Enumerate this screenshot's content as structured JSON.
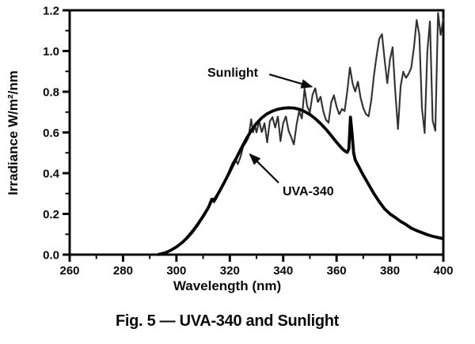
{
  "figure": {
    "caption": "Fig. 5 — UVA-340 and Sunlight"
  },
  "chart_data": {
    "type": "line",
    "title": "",
    "xlabel": "Wavelength (nm)",
    "ylabel": "Irradiance W/m²/nm",
    "xlim": [
      260,
      400
    ],
    "ylim": [
      0,
      1.2
    ],
    "x_ticks": [
      260,
      280,
      300,
      320,
      340,
      360,
      380,
      400
    ],
    "x_minor_step": 10,
    "y_ticks": [
      "0.0",
      "0.2",
      "0.4",
      "0.6",
      "0.8",
      "1.0",
      "1.2"
    ],
    "y_minor_step": 0.1,
    "grid": false,
    "legend_position": "inline-annotations-with-arrows",
    "frame": "full-box",
    "ink_color": "#0a0a0a",
    "series": [
      {
        "name": "Sunlight",
        "style": "stippled-noisy-thin",
        "color": "#2e2e2e",
        "points": [
          [
            294,
            0
          ],
          [
            296,
            0.008
          ],
          [
            298,
            0.02
          ],
          [
            300,
            0.037
          ],
          [
            302,
            0.06
          ],
          [
            304,
            0.088
          ],
          [
            306,
            0.12
          ],
          [
            308,
            0.155
          ],
          [
            310,
            0.195
          ],
          [
            311,
            0.215
          ],
          [
            312,
            0.235
          ],
          [
            313,
            0.275
          ],
          [
            314,
            0.255
          ],
          [
            315,
            0.275
          ],
          [
            316,
            0.305
          ],
          [
            317,
            0.33
          ],
          [
            318,
            0.36
          ],
          [
            319,
            0.385
          ],
          [
            320,
            0.42
          ],
          [
            321,
            0.45
          ],
          [
            322,
            0.47
          ],
          [
            323,
            0.445
          ],
          [
            324,
            0.48
          ],
          [
            325,
            0.53
          ],
          [
            326,
            0.55
          ],
          [
            327,
            0.575
          ],
          [
            328,
            0.665
          ],
          [
            328.7,
            0.6
          ],
          [
            329.4,
            0.635
          ],
          [
            330,
            0.6
          ],
          [
            331,
            0.655
          ],
          [
            332,
            0.6
          ],
          [
            333,
            0.645
          ],
          [
            334,
            0.552
          ],
          [
            335,
            0.655
          ],
          [
            336,
            0.675
          ],
          [
            337,
            0.625
          ],
          [
            338,
            0.68
          ],
          [
            339,
            0.558
          ],
          [
            340,
            0.645
          ],
          [
            341,
            0.68
          ],
          [
            342,
            0.608
          ],
          [
            343,
            0.578
          ],
          [
            344,
            0.54
          ],
          [
            345,
            0.638
          ],
          [
            346,
            0.705
          ],
          [
            347,
            0.668
          ],
          [
            348,
            0.815
          ],
          [
            349,
            0.728
          ],
          [
            350,
            0.7
          ],
          [
            351,
            0.785
          ],
          [
            352,
            0.818
          ],
          [
            353,
            0.748
          ],
          [
            354,
            0.775
          ],
          [
            355,
            0.705
          ],
          [
            356,
            0.662
          ],
          [
            357,
            0.648
          ],
          [
            358,
            0.748
          ],
          [
            359,
            0.782
          ],
          [
            360,
            0.728
          ],
          [
            361,
            0.688
          ],
          [
            362,
            0.715
          ],
          [
            363,
            0.705
          ],
          [
            364,
            0.8
          ],
          [
            365,
            0.92
          ],
          [
            366,
            0.84
          ],
          [
            367,
            0.8
          ],
          [
            368,
            0.85
          ],
          [
            369,
            0.77
          ],
          [
            370,
            0.72
          ],
          [
            371,
            0.69
          ],
          [
            372,
            0.68
          ],
          [
            373,
            0.758
          ],
          [
            374,
            0.878
          ],
          [
            375,
            0.975
          ],
          [
            376,
            1.06
          ],
          [
            377,
            1.082
          ],
          [
            378,
            0.958
          ],
          [
            379,
            0.842
          ],
          [
            380,
            0.958
          ],
          [
            381,
            1.018
          ],
          [
            382,
            0.8
          ],
          [
            383,
            0.618
          ],
          [
            384,
            0.828
          ],
          [
            385,
            0.898
          ],
          [
            386,
            0.868
          ],
          [
            387,
            0.888
          ],
          [
            388,
            0.918
          ],
          [
            389,
            1.018
          ],
          [
            390,
            1.152
          ],
          [
            391,
            1.078
          ],
          [
            392,
            0.718
          ],
          [
            393,
            0.598
          ],
          [
            394,
            0.998
          ],
          [
            395,
            1.148
          ],
          [
            396,
            0.658
          ],
          [
            397,
            0.608
          ],
          [
            398,
            1.188
          ],
          [
            399,
            1.078
          ],
          [
            400,
            1.158
          ]
        ]
      },
      {
        "name": "UVA-340",
        "style": "solid-smooth-thick",
        "color": "#040404",
        "points": [
          [
            293,
            0
          ],
          [
            294,
            0.003
          ],
          [
            296,
            0.01
          ],
          [
            298,
            0.022
          ],
          [
            300,
            0.038
          ],
          [
            302,
            0.058
          ],
          [
            304,
            0.082
          ],
          [
            306,
            0.112
          ],
          [
            308,
            0.148
          ],
          [
            310,
            0.188
          ],
          [
            312,
            0.232
          ],
          [
            313,
            0.262
          ],
          [
            313.5,
            0.272
          ],
          [
            314,
            0.268
          ],
          [
            315,
            0.285
          ],
          [
            316,
            0.308
          ],
          [
            318,
            0.356
          ],
          [
            320,
            0.408
          ],
          [
            322,
            0.462
          ],
          [
            324,
            0.515
          ],
          [
            326,
            0.565
          ],
          [
            328,
            0.608
          ],
          [
            330,
            0.645
          ],
          [
            332,
            0.672
          ],
          [
            334,
            0.692
          ],
          [
            336,
            0.705
          ],
          [
            338,
            0.714
          ],
          [
            340,
            0.719
          ],
          [
            342,
            0.721
          ],
          [
            344,
            0.72
          ],
          [
            346,
            0.714
          ],
          [
            348,
            0.703
          ],
          [
            350,
            0.688
          ],
          [
            352,
            0.668
          ],
          [
            354,
            0.644
          ],
          [
            356,
            0.616
          ],
          [
            358,
            0.585
          ],
          [
            360,
            0.552
          ],
          [
            362,
            0.522
          ],
          [
            363,
            0.51
          ],
          [
            364,
            0.502
          ],
          [
            364.6,
            0.52
          ],
          [
            365.2,
            0.675
          ],
          [
            365.8,
            0.595
          ],
          [
            366.4,
            0.5
          ],
          [
            367,
            0.465
          ],
          [
            368,
            0.44
          ],
          [
            370,
            0.39
          ],
          [
            372,
            0.345
          ],
          [
            374,
            0.3
          ],
          [
            376,
            0.26
          ],
          [
            378,
            0.225
          ],
          [
            380,
            0.2
          ],
          [
            382,
            0.182
          ],
          [
            384,
            0.163
          ],
          [
            386,
            0.148
          ],
          [
            388,
            0.13
          ],
          [
            390,
            0.118
          ],
          [
            392,
            0.108
          ],
          [
            394,
            0.098
          ],
          [
            396,
            0.09
          ],
          [
            398,
            0.084
          ],
          [
            400,
            0.078
          ]
        ]
      }
    ],
    "annotations": [
      {
        "label": "Sunlight",
        "text_at": [
          311.6,
          0.874
        ],
        "arrow_from": [
          334.8,
          0.885
        ],
        "arrow_to": [
          350.6,
          0.825
        ]
      },
      {
        "label": "UVA-340",
        "text_at": [
          339.8,
          0.291
        ],
        "arrow_from": [
          338.3,
          0.353
        ],
        "arrow_to": [
          327.6,
          0.492
        ]
      }
    ]
  }
}
